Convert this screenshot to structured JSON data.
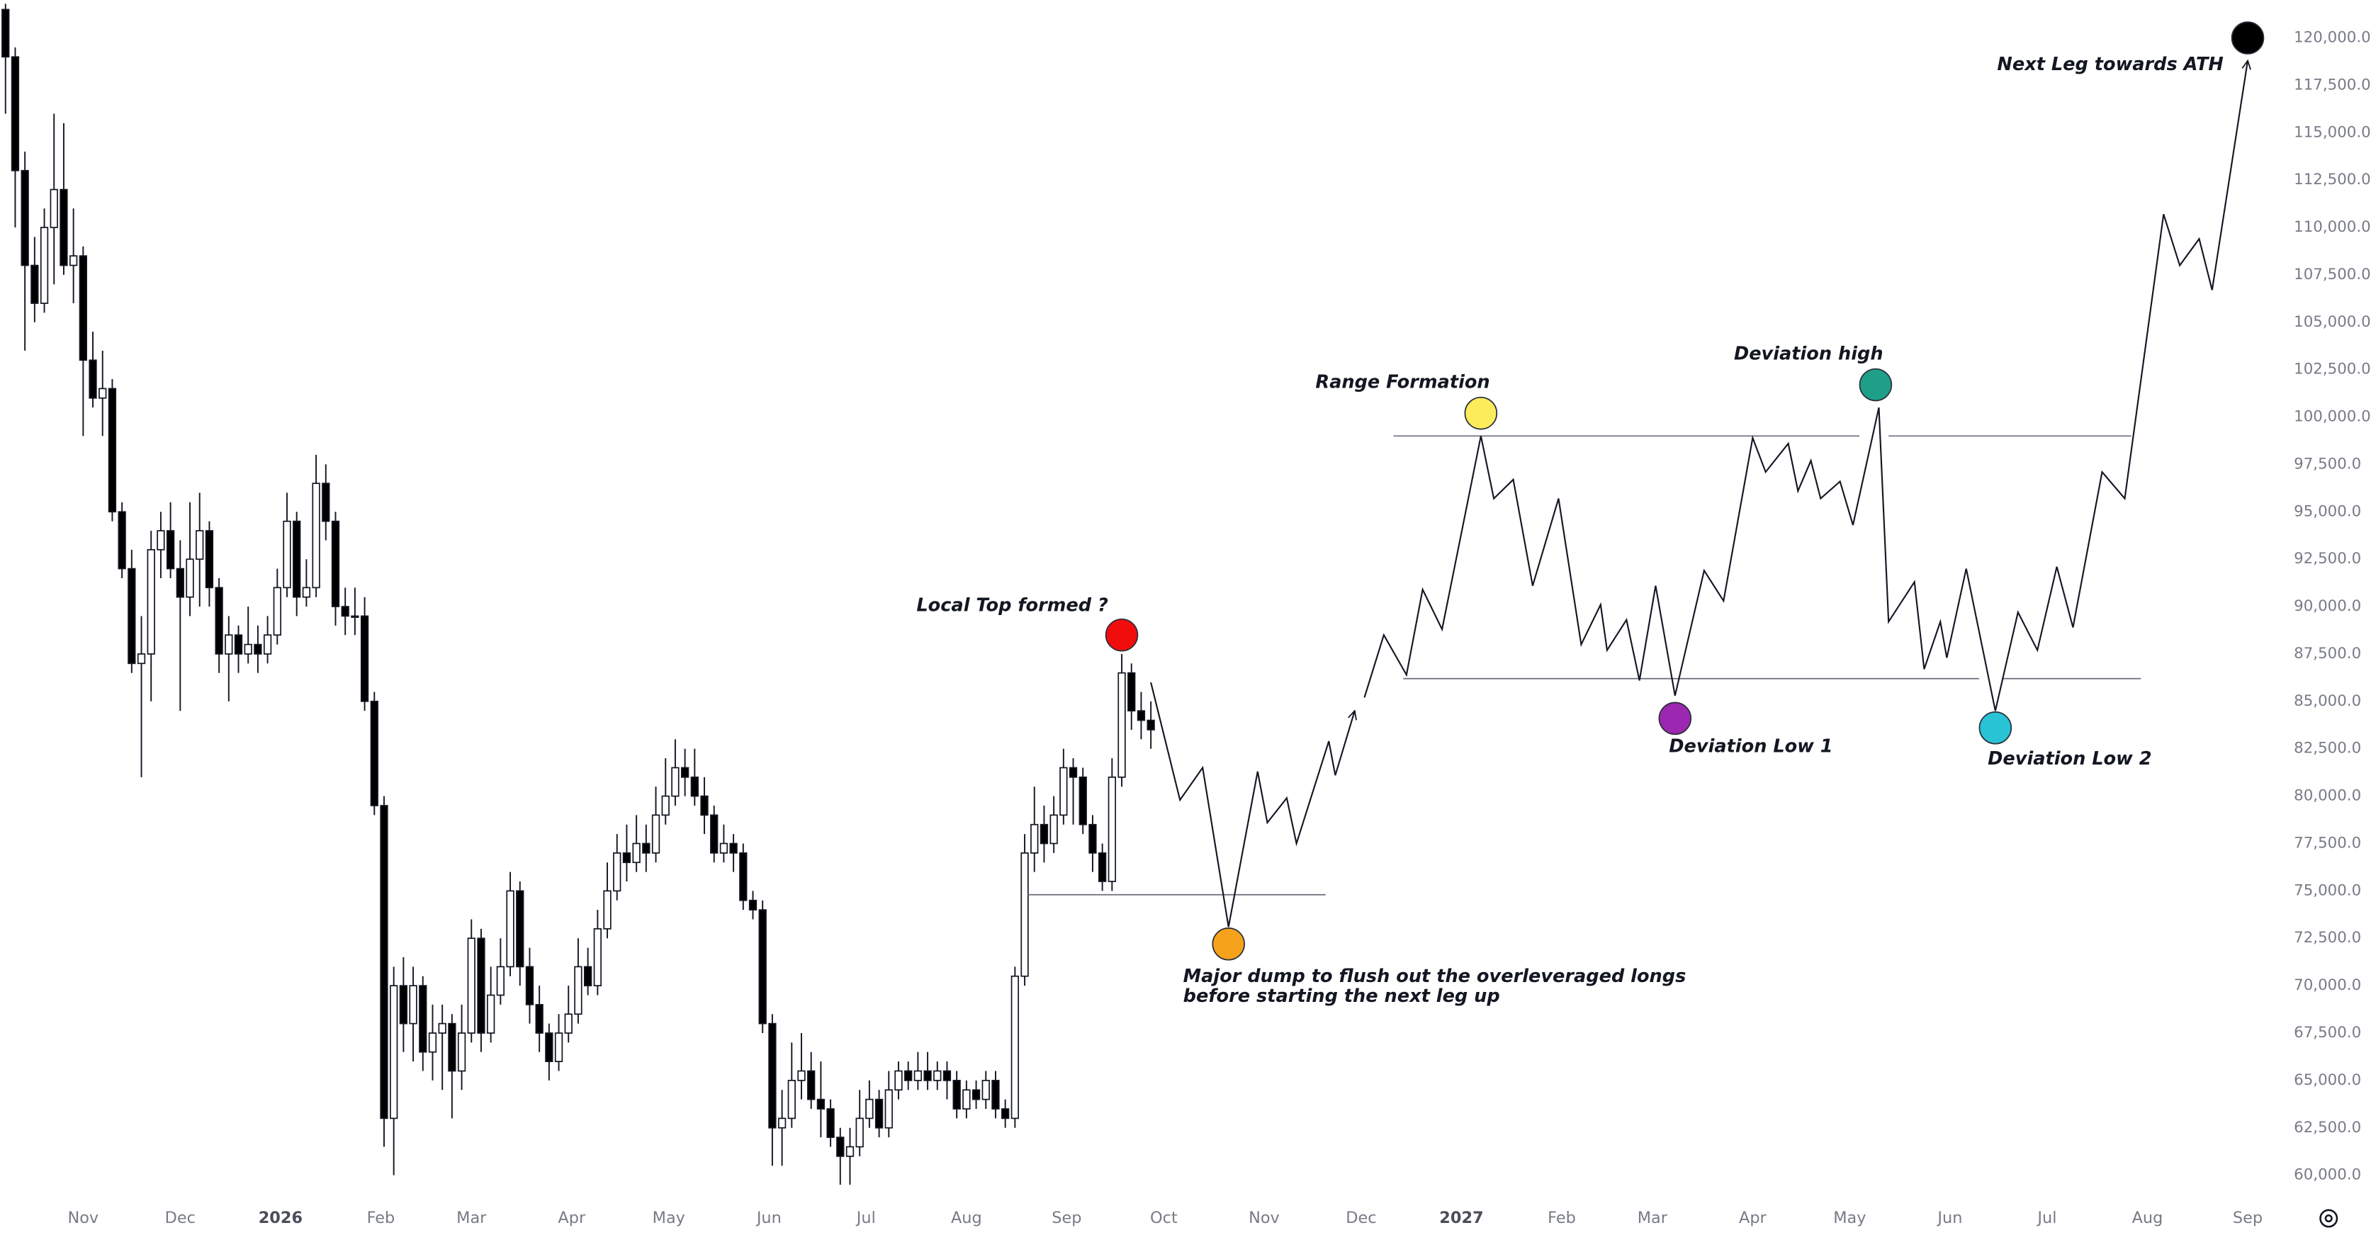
{
  "chart_data": {
    "type": "candlestick",
    "grid": false,
    "xlim": [
      -25.7,
      680
    ],
    "ylim": [
      59000,
      122000
    ],
    "xticks": [
      {
        "value": 0,
        "label": "Nov"
      },
      {
        "value": 30,
        "label": "Dec"
      },
      {
        "value": 61,
        "label": "2026"
      },
      {
        "value": 92,
        "label": "Feb"
      },
      {
        "value": 120,
        "label": "Mar"
      },
      {
        "value": 151,
        "label": "Apr"
      },
      {
        "value": 181,
        "label": "May"
      },
      {
        "value": 212,
        "label": "Jun"
      },
      {
        "value": 242,
        "label": "Jul"
      },
      {
        "value": 273,
        "label": "Aug"
      },
      {
        "value": 304,
        "label": "Sep"
      },
      {
        "value": 334,
        "label": "Oct"
      },
      {
        "value": 365,
        "label": "Nov"
      },
      {
        "value": 395,
        "label": "Dec"
      },
      {
        "value": 426,
        "label": "2027"
      },
      {
        "value": 457,
        "label": "Feb"
      },
      {
        "value": 485,
        "label": "Mar"
      },
      {
        "value": 516,
        "label": "Apr"
      },
      {
        "value": 546,
        "label": "May"
      },
      {
        "value": 577,
        "label": "Jun"
      },
      {
        "value": 607,
        "label": "Jul"
      },
      {
        "value": 638,
        "label": "Aug"
      },
      {
        "value": 669,
        "label": "Sep"
      }
    ],
    "yticks": [
      {
        "value": 60000,
        "label": "60,000.0"
      },
      {
        "value": 62500,
        "label": "62,500.0"
      },
      {
        "value": 65000,
        "label": "65,000.0"
      },
      {
        "value": 67500,
        "label": "67,500.0"
      },
      {
        "value": 70000,
        "label": "70,000.0"
      },
      {
        "value": 72500,
        "label": "72,500.0"
      },
      {
        "value": 75000,
        "label": "75,000.0"
      },
      {
        "value": 77500,
        "label": "77,500.0"
      },
      {
        "value": 80000,
        "label": "80,000.0"
      },
      {
        "value": 82500,
        "label": "82,500.0"
      },
      {
        "value": 85000,
        "label": "85,000.0"
      },
      {
        "value": 87500,
        "label": "87,500.0"
      },
      {
        "value": 90000,
        "label": "90,000.0"
      },
      {
        "value": 92500,
        "label": "92,500.0"
      },
      {
        "value": 95000,
        "label": "95,000.0"
      },
      {
        "value": 97500,
        "label": "97,500.0"
      },
      {
        "value": 100000,
        "label": "100,000.0"
      },
      {
        "value": 102500,
        "label": "102,500.0"
      },
      {
        "value": 105000,
        "label": "105,000.0"
      },
      {
        "value": 107500,
        "label": "107,500.0"
      },
      {
        "value": 110000,
        "label": "110,000.0"
      },
      {
        "value": 112500,
        "label": "112,500.0"
      },
      {
        "value": 115000,
        "label": "115,000.0"
      },
      {
        "value": 117500,
        "label": "117,500.0"
      },
      {
        "value": 120000,
        "label": "120,000.0"
      }
    ],
    "up_color": "#ffffff",
    "down_color": "#000000",
    "candles": {
      "x": [
        -24,
        -21,
        -18,
        -15,
        -12,
        -9,
        -6,
        -3,
        0,
        3,
        6,
        9,
        12,
        15,
        18,
        21,
        24,
        27,
        30,
        33,
        36,
        39,
        42,
        45,
        48,
        51,
        54,
        57,
        60,
        63,
        66,
        69,
        72,
        75,
        78,
        81,
        84,
        87,
        90,
        93,
        96,
        99,
        102,
        105,
        108,
        111,
        114,
        117,
        120,
        123,
        126,
        129,
        132,
        135,
        138,
        141,
        144,
        147,
        150,
        153,
        156,
        159,
        162,
        165,
        168,
        171,
        174,
        177,
        180,
        183,
        186,
        189,
        192,
        195,
        198,
        201,
        204,
        207,
        210,
        213,
        216,
        219,
        222,
        225,
        228,
        231,
        234,
        237,
        240,
        243,
        246,
        249,
        252,
        255,
        258,
        261,
        264,
        267,
        270,
        273,
        276,
        279,
        282,
        285,
        288,
        291,
        294,
        297,
        300,
        303,
        306,
        309,
        312,
        315,
        318,
        321,
        324,
        327,
        330
      ],
      "ohlc": [
        [
          121500,
          121800,
          116000,
          119000
        ],
        [
          119000,
          119500,
          110000,
          113000
        ],
        [
          113000,
          114000,
          103500,
          108000
        ],
        [
          108000,
          109500,
          105000,
          106000
        ],
        [
          106000,
          111000,
          105500,
          110000
        ],
        [
          110000,
          116000,
          107000,
          112000
        ],
        [
          112000,
          115500,
          107500,
          108000
        ],
        [
          108000,
          111000,
          106000,
          108500
        ],
        [
          108500,
          109000,
          99000,
          103000
        ],
        [
          103000,
          104500,
          100500,
          101000
        ],
        [
          101000,
          103500,
          99000,
          101500
        ],
        [
          101500,
          102000,
          94500,
          95000
        ],
        [
          95000,
          95500,
          91500,
          92000
        ],
        [
          92000,
          93000,
          86500,
          87000
        ],
        [
          87000,
          89500,
          81000,
          87500
        ],
        [
          87500,
          94000,
          85000,
          93000
        ],
        [
          93000,
          95000,
          91500,
          94000
        ],
        [
          94000,
          95500,
          91500,
          92000
        ],
        [
          92000,
          93500,
          84500,
          90500
        ],
        [
          90500,
          95500,
          89500,
          92500
        ],
        [
          92500,
          96000,
          90000,
          94000
        ],
        [
          94000,
          94500,
          90000,
          91000
        ],
        [
          91000,
          91500,
          86500,
          87500
        ],
        [
          87500,
          89500,
          85000,
          88500
        ],
        [
          88500,
          89000,
          86500,
          87500
        ],
        [
          87500,
          90000,
          87000,
          88000
        ],
        [
          88000,
          89000,
          86500,
          87500
        ],
        [
          87500,
          89500,
          87000,
          88500
        ],
        [
          88500,
          92000,
          88000,
          91000
        ],
        [
          91000,
          96000,
          90500,
          94500
        ],
        [
          94500,
          95000,
          89500,
          90500
        ],
        [
          90500,
          92500,
          90000,
          91000
        ],
        [
          91000,
          98000,
          90500,
          96500
        ],
        [
          96500,
          97500,
          93500,
          94500
        ],
        [
          94500,
          95000,
          89000,
          90000
        ],
        [
          90000,
          91000,
          88500,
          89500
        ],
        [
          89500,
          91000,
          88500,
          89500
        ],
        [
          89500,
          90500,
          84500,
          85000
        ],
        [
          85000,
          85500,
          79000,
          79500
        ],
        [
          79500,
          80000,
          61500,
          63000
        ],
        [
          63000,
          71000,
          60000,
          70000
        ],
        [
          70000,
          71500,
          66500,
          68000
        ],
        [
          68000,
          71000,
          66000,
          70000
        ],
        [
          70000,
          70500,
          65500,
          66500
        ],
        [
          66500,
          69000,
          65000,
          67500
        ],
        [
          67500,
          69000,
          64500,
          68000
        ],
        [
          68000,
          68500,
          63000,
          65500
        ],
        [
          65500,
          69000,
          64500,
          67500
        ],
        [
          67500,
          73500,
          67000,
          72500
        ],
        [
          72500,
          73000,
          66500,
          67500
        ],
        [
          67500,
          71000,
          67000,
          69500
        ],
        [
          69500,
          72500,
          69000,
          71000
        ],
        [
          71000,
          76000,
          70500,
          75000
        ],
        [
          75000,
          75500,
          70000,
          71000
        ],
        [
          71000,
          72000,
          68000,
          69000
        ],
        [
          69000,
          70000,
          66500,
          67500
        ],
        [
          67500,
          68000,
          65000,
          66000
        ],
        [
          66000,
          68500,
          65500,
          67500
        ],
        [
          67500,
          70000,
          67000,
          68500
        ],
        [
          68500,
          72500,
          68000,
          71000
        ],
        [
          71000,
          72000,
          69500,
          70000
        ],
        [
          70000,
          74000,
          69500,
          73000
        ],
        [
          73000,
          76500,
          72500,
          75000
        ],
        [
          75000,
          78000,
          74500,
          77000
        ],
        [
          77000,
          78500,
          75500,
          76500
        ],
        [
          76500,
          79000,
          76000,
          77500
        ],
        [
          77500,
          78500,
          76000,
          77000
        ],
        [
          77000,
          80500,
          76500,
          79000
        ],
        [
          79000,
          82000,
          78500,
          80000
        ],
        [
          80000,
          83000,
          79500,
          81500
        ],
        [
          81500,
          82500,
          80000,
          81000
        ],
        [
          81000,
          82500,
          79500,
          80000
        ],
        [
          80000,
          81000,
          78000,
          79000
        ],
        [
          79000,
          79500,
          76500,
          77000
        ],
        [
          77000,
          78500,
          76500,
          77500
        ],
        [
          77500,
          78000,
          76000,
          77000
        ],
        [
          77000,
          77500,
          74000,
          74500
        ],
        [
          74500,
          75000,
          73500,
          74000
        ],
        [
          74000,
          74500,
          67500,
          68000
        ],
        [
          68000,
          68500,
          60500,
          62500
        ],
        [
          62500,
          64500,
          60500,
          63000
        ],
        [
          63000,
          67000,
          62500,
          65000
        ],
        [
          65000,
          67500,
          64000,
          65500
        ],
        [
          65500,
          66500,
          63500,
          64000
        ],
        [
          64000,
          66000,
          62000,
          63500
        ],
        [
          63500,
          64000,
          61500,
          62000
        ],
        [
          62000,
          62500,
          59500,
          61000
        ],
        [
          61000,
          62500,
          59500,
          61500
        ],
        [
          61500,
          64500,
          61000,
          63000
        ],
        [
          63000,
          65000,
          62500,
          64000
        ],
        [
          64000,
          64500,
          62000,
          62500
        ],
        [
          62500,
          65500,
          62000,
          64500
        ],
        [
          64500,
          66000,
          64000,
          65500
        ],
        [
          65500,
          66000,
          64500,
          65000
        ],
        [
          65000,
          66500,
          64500,
          65500
        ],
        [
          65500,
          66500,
          64500,
          65000
        ],
        [
          65000,
          66000,
          64500,
          65500
        ],
        [
          65500,
          66000,
          64000,
          65000
        ],
        [
          65000,
          65500,
          63000,
          63500
        ],
        [
          63500,
          65000,
          63000,
          64500
        ],
        [
          64500,
          65000,
          63500,
          64000
        ],
        [
          64000,
          65500,
          63500,
          65000
        ],
        [
          65000,
          65500,
          63000,
          63500
        ],
        [
          63500,
          64000,
          62500,
          63000
        ],
        [
          63000,
          71000,
          62500,
          70500
        ],
        [
          70500,
          78000,
          70000,
          77000
        ],
        [
          77000,
          80500,
          76000,
          78500
        ],
        [
          78500,
          79500,
          76500,
          77500
        ],
        [
          77500,
          80000,
          77000,
          79000
        ],
        [
          79000,
          82500,
          78500,
          81500
        ],
        [
          81500,
          82000,
          78500,
          81000
        ],
        [
          81000,
          81500,
          78000,
          78500
        ],
        [
          78500,
          79000,
          76000,
          77000
        ],
        [
          77000,
          77500,
          75000,
          75500
        ],
        [
          75500,
          82000,
          75000,
          81000
        ],
        [
          81000,
          87500,
          80500,
          86500
        ],
        [
          86500,
          87000,
          83500,
          84500
        ],
        [
          84500,
          85500,
          83000,
          84000
        ],
        [
          84000,
          85000,
          82500,
          83500
        ]
      ]
    },
    "projections": [
      {
        "color": "#131722",
        "x": [
          330,
          339,
          346,
          354,
          363,
          366,
          372,
          375,
          385,
          387,
          393
        ],
        "values": [
          86000,
          79800,
          81500,
          73100,
          81300,
          78600,
          79900,
          77500,
          82900,
          81100,
          84500
        ]
      },
      {
        "color": "#131722",
        "x": [
          396,
          402,
          409,
          414,
          420,
          432,
          436,
          442,
          448,
          456,
          463,
          469,
          471,
          477,
          481,
          486,
          492,
          501,
          507,
          516,
          520,
          527,
          530,
          534,
          537,
          543,
          547,
          555,
          558,
          566,
          569,
          574,
          576,
          582,
          591,
          598,
          604,
          610,
          615,
          624,
          631,
          643,
          648,
          654,
          658,
          669
        ],
        "values": [
          85200,
          88500,
          86400,
          90900,
          88800,
          99000,
          95700,
          96700,
          91100,
          95700,
          88000,
          90100,
          87700,
          89300,
          86100,
          91100,
          85300,
          91900,
          90300,
          98900,
          97100,
          98600,
          96100,
          97700,
          95700,
          96600,
          94300,
          100500,
          89200,
          91300,
          86700,
          89200,
          87300,
          92000,
          84500,
          89700,
          87700,
          92100,
          88900,
          97100,
          95700,
          110700,
          108000,
          109400,
          106700,
          118800
        ]
      }
    ],
    "levels": [
      {
        "value": 74800,
        "x": [
          292,
          384
        ]
      },
      {
        "value": 99000,
        "x": [
          405,
          549
        ]
      },
      {
        "value": 99000,
        "x": [
          558,
          633
        ]
      },
      {
        "value": 86200,
        "x": [
          408,
          586
        ]
      },
      {
        "value": 86200,
        "x": [
          593,
          636
        ]
      }
    ],
    "markers": [
      {
        "x": 321,
        "value": 88500,
        "color": "#f20d0d",
        "lines": [
          "Local Top formed ?"
        ]
      },
      {
        "x": 354,
        "value": 72200,
        "color": "#f7a21b",
        "lines": [
          "Major dump to flush out the overleveraged longs",
          "before starting the next leg up"
        ]
      },
      {
        "x": 432,
        "value": 100200,
        "color": "#fcec5c",
        "lines": [
          "Range Formation"
        ]
      },
      {
        "x": 492,
        "value": 84100,
        "color": "#9c27b0",
        "lines": [
          "Deviation Low 1"
        ]
      },
      {
        "x": 554,
        "value": 101700,
        "color": "#1f9e8a",
        "lines": [
          "Deviation high"
        ]
      },
      {
        "x": 591,
        "value": 83600,
        "color": "#29c3d6",
        "lines": [
          "Deviation Low 2"
        ]
      },
      {
        "x": 669,
        "value": 120000,
        "color": "#000000",
        "lines": [
          "Next Leg towards ATH"
        ]
      }
    ]
  }
}
